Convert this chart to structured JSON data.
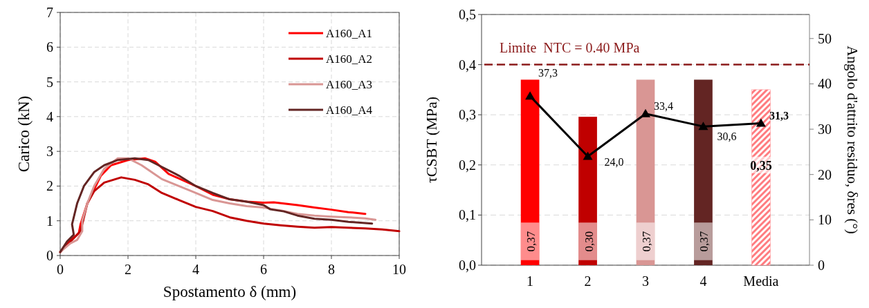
{
  "chart_data": [
    {
      "type": "line",
      "xlabel": "Spostamento δ (mm)",
      "ylabel": "Carico (kN)",
      "xlim": [
        0,
        10
      ],
      "xticks": [
        0,
        2,
        4,
        6,
        8,
        10
      ],
      "ylim": [
        0,
        7
      ],
      "yticks": [
        0,
        1,
        2,
        3,
        4,
        5,
        6,
        7
      ],
      "grid": true,
      "legend": "top right",
      "line_style": "solid",
      "series": [
        {
          "name": "A160_A1",
          "color": "#ff0000",
          "x": [
            0,
            0.2,
            0.5,
            0.55,
            0.6,
            0.8,
            1.0,
            1.2,
            1.5,
            2.0,
            2.5,
            2.8,
            3.2,
            4,
            4.5,
            5,
            5.5,
            6,
            6.3,
            7,
            7.5,
            8,
            8.5,
            9
          ],
          "values": [
            0.1,
            0.35,
            0.6,
            0.65,
            0.9,
            1.5,
            1.9,
            2.3,
            2.6,
            2.75,
            2.8,
            2.7,
            2.35,
            2.0,
            1.75,
            1.62,
            1.55,
            1.52,
            1.53,
            1.45,
            1.38,
            1.32,
            1.25,
            1.2
          ]
        },
        {
          "name": "A160_A2",
          "color": "#c00000",
          "x": [
            0,
            0.2,
            0.5,
            0.6,
            0.8,
            1.0,
            1.3,
            1.8,
            2.2,
            2.6,
            3,
            3.5,
            4,
            4.5,
            5,
            5.5,
            6,
            6.5,
            7,
            7.5,
            8,
            8.5,
            9,
            9.5,
            10
          ],
          "values": [
            0.1,
            0.3,
            0.6,
            0.7,
            1.5,
            1.85,
            2.1,
            2.25,
            2.18,
            2.05,
            1.8,
            1.6,
            1.4,
            1.28,
            1.1,
            1.0,
            0.92,
            0.87,
            0.83,
            0.8,
            0.82,
            0.8,
            0.78,
            0.75,
            0.7
          ]
        },
        {
          "name": "A160_A3",
          "color": "#d99694",
          "x": [
            0,
            0.3,
            0.5,
            0.65,
            0.65,
            0.8,
            1.0,
            1.3,
            1.7,
            2.0,
            2.4,
            3,
            3.5,
            4,
            4.5,
            5,
            5.5,
            6,
            6.5,
            7,
            7.5,
            8,
            8.5,
            9,
            9.3
          ],
          "values": [
            0.1,
            0.35,
            0.45,
            0.7,
            1.0,
            1.5,
            2.0,
            2.5,
            2.8,
            2.8,
            2.6,
            2.2,
            2.0,
            1.8,
            1.6,
            1.5,
            1.42,
            1.38,
            1.3,
            1.2,
            1.15,
            1.12,
            1.1,
            1.07,
            1.03
          ]
        },
        {
          "name": "A160_A4",
          "color": "#632523",
          "x": [
            0,
            0.2,
            0.4,
            0.35,
            0.5,
            0.7,
            1.0,
            1.3,
            1.7,
            2.2,
            2.6,
            3,
            3.5,
            4,
            4.5,
            5,
            5.5,
            6,
            6.2,
            6.6,
            7,
            7.5,
            8,
            8.5,
            9.2
          ],
          "values": [
            0.1,
            0.4,
            0.6,
            0.9,
            1.5,
            2.0,
            2.4,
            2.6,
            2.75,
            2.8,
            2.75,
            2.55,
            2.3,
            2.0,
            1.8,
            1.62,
            1.55,
            1.45,
            1.33,
            1.27,
            1.15,
            1.06,
            1.03,
            0.97,
            0.92
          ]
        }
      ]
    },
    {
      "type": "bar",
      "categories": [
        "1",
        "2",
        "3",
        "4",
        "Media"
      ],
      "ylabel": "τCSBT (MPa)",
      "y2label": "Angolo d'attrito residuo, δres (°)",
      "ylim": [
        0,
        0.5
      ],
      "yticks": [
        {
          "value": 0,
          "label": "0,0"
        },
        {
          "value": 0.1,
          "label": "0,1"
        },
        {
          "value": 0.2,
          "label": "0,2"
        },
        {
          "value": 0.3,
          "label": "0,3"
        },
        {
          "value": 0.4,
          "label": "0,4"
        },
        {
          "value": 0.5,
          "label": "0,5"
        }
      ],
      "y2lim": [
        0,
        55.3
      ],
      "y2ticks": [
        0,
        10,
        20,
        30,
        40,
        50
      ],
      "grid": "y",
      "ref_lines": [
        {
          "axis": "y",
          "value": 0.4,
          "label": "Limite  NTC = 0.40 MPa",
          "color": "#8b1a1a",
          "line_style": "dashed"
        }
      ],
      "series": [
        {
          "type": "bar",
          "colors": [
            "#ff0000",
            "#c00000",
            "#d99694",
            "#632523",
            "#ff7c80"
          ],
          "values": [
            0.37,
            0.296,
            0.37,
            0.37,
            0.35
          ],
          "value_labels": [
            "0,37",
            "0,30",
            "0,37",
            "0,37",
            "0,35"
          ]
        },
        {
          "type": "line",
          "axis": "y2",
          "color": "#000000",
          "marker": "triangle",
          "values": [
            37.3,
            24.0,
            33.4,
            30.6,
            31.3
          ],
          "value_labels": [
            "37,3",
            "24,0",
            "33,4",
            "30,6",
            "31,3"
          ]
        }
      ]
    }
  ]
}
